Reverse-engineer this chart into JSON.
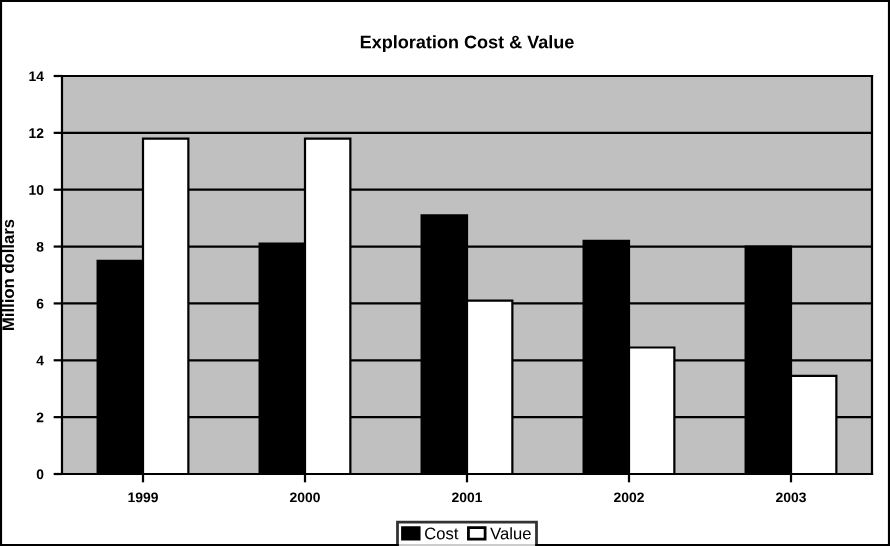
{
  "chart_data": {
    "type": "bar",
    "title": "Exploration Cost & Value",
    "ylabel": "Million dollars",
    "categories": [
      "1999",
      "2000",
      "2001",
      "2002",
      "2003"
    ],
    "series": [
      {
        "name": "Cost",
        "color": "#000000",
        "values": [
          7.5,
          8.1,
          9.1,
          8.2,
          8.0
        ]
      },
      {
        "name": "Value",
        "color": "#ffffff",
        "values": [
          11.8,
          11.8,
          6.1,
          4.45,
          3.45
        ]
      }
    ],
    "ylim": [
      0,
      14
    ],
    "yticks": [
      0,
      2,
      4,
      6,
      8,
      10,
      12,
      14
    ],
    "grid": "y",
    "legend": "bottom"
  }
}
